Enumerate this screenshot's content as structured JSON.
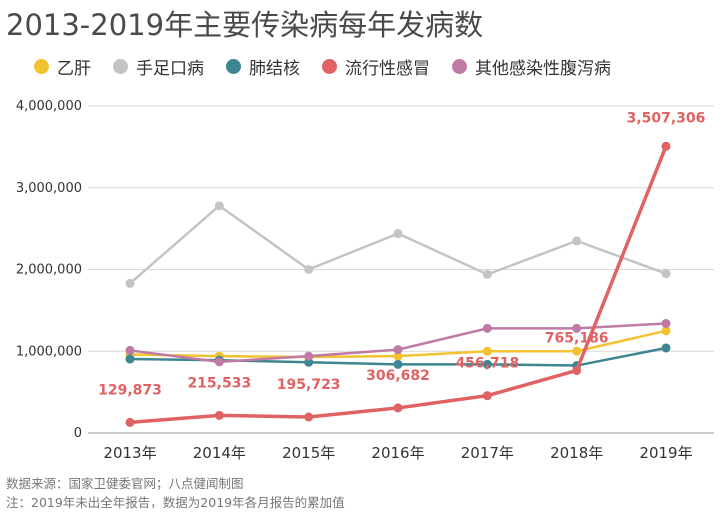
{
  "title": "2013-2019年主要传染病每年发病数",
  "notes": {
    "source": "数据来源：国家卫健委官网；八点健闻制图",
    "note": "注：2019年未出全年报告，数据为2019年各月报告的累加值"
  },
  "chart_data": {
    "type": "line",
    "categories": [
      "2013年",
      "2014年",
      "2015年",
      "2016年",
      "2017年",
      "2018年",
      "2019年"
    ],
    "ylim": [
      0,
      4000000
    ],
    "y_ticks": [
      0,
      1000000,
      2000000,
      3000000,
      4000000
    ],
    "y_tick_labels": [
      "0",
      "1,000,000",
      "2,000,000",
      "3,000,000",
      "4,000,000"
    ],
    "grid": true,
    "legend_placement": "top-left",
    "series": [
      {
        "name": "乙肝",
        "color": "#f2c230",
        "values": [
          960000,
          940000,
          930000,
          940000,
          1000000,
          1000000,
          1250000
        ]
      },
      {
        "name": "手足口病",
        "color": "#c4c4c4",
        "values": [
          1830000,
          2780000,
          2000000,
          2440000,
          1940000,
          2350000,
          1950000
        ]
      },
      {
        "name": "肺结核",
        "color": "#3d8591",
        "values": [
          905000,
          890000,
          865000,
          840000,
          840000,
          825000,
          1040000
        ]
      },
      {
        "name": "流行性感冒",
        "color": "#e06262",
        "values": [
          129873,
          215533,
          195723,
          306682,
          456718,
          765186,
          3507306
        ],
        "data_labels": [
          "129,873",
          "215,533",
          "195,723",
          "306,682",
          "456,718",
          "765,186",
          "3,507,306"
        ]
      },
      {
        "name": "其他感染性腹泻病",
        "color": "#c07aa6",
        "values": [
          1010000,
          870000,
          940000,
          1020000,
          1280000,
          1280000,
          1340000
        ]
      }
    ]
  }
}
